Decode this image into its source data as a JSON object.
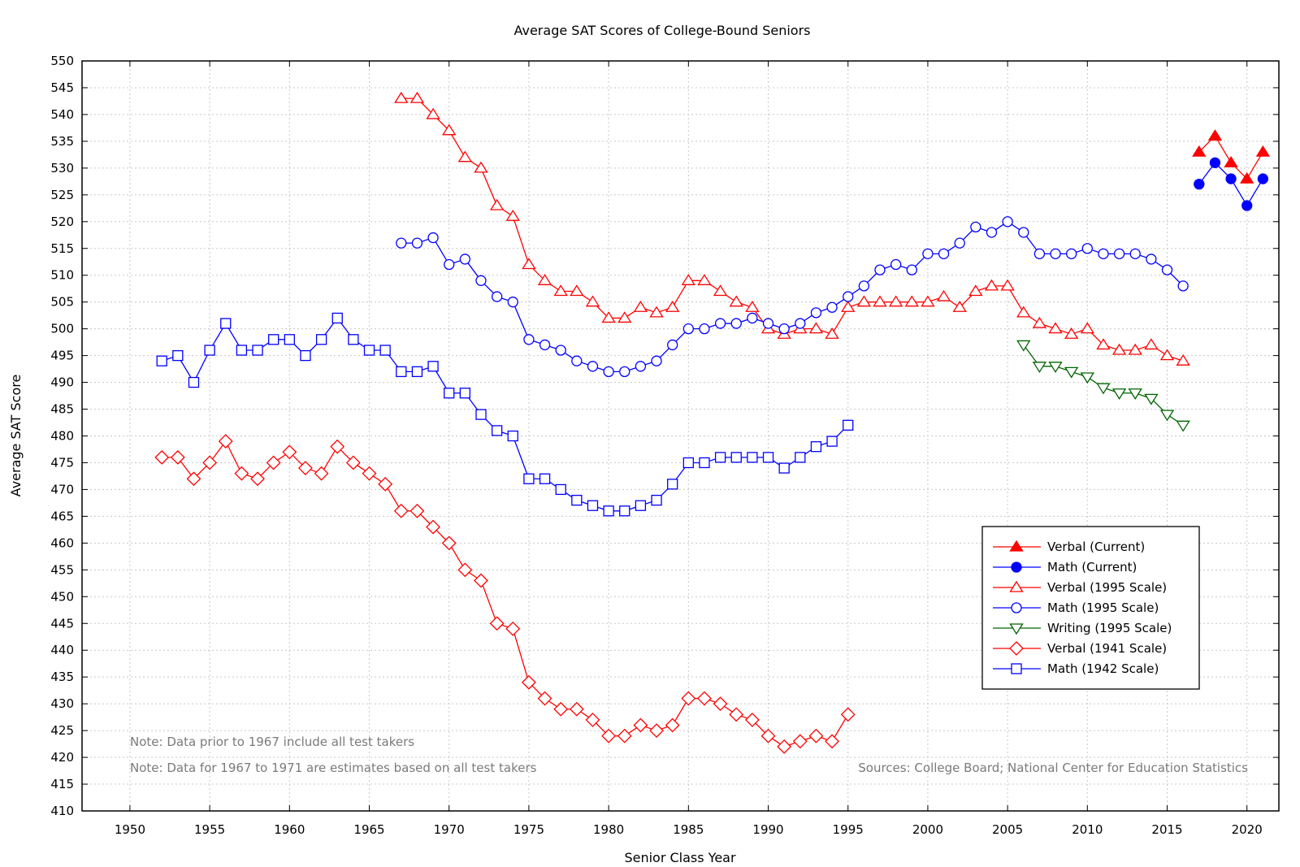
{
  "chart_data": {
    "type": "line",
    "title": "Average SAT Scores of College-Bound Seniors",
    "xlabel": "Senior Class Year",
    "ylabel": "Average SAT Score",
    "xlim": [
      1947,
      2022
    ],
    "ylim": [
      410,
      550
    ],
    "xticks": [
      1950,
      1955,
      1960,
      1965,
      1970,
      1975,
      1980,
      1985,
      1990,
      1995,
      2000,
      2005,
      2010,
      2015,
      2020
    ],
    "yticks": [
      410,
      415,
      420,
      425,
      430,
      435,
      440,
      445,
      450,
      455,
      460,
      465,
      470,
      475,
      480,
      485,
      490,
      495,
      500,
      505,
      510,
      515,
      520,
      525,
      530,
      535,
      540,
      545,
      550
    ],
    "grid": true,
    "legend_position": "lower-right",
    "notes": [
      "Note: Data prior to 1967 include all test takers",
      "Note: Data for 1967 to 1971 are estimates based on all test takers"
    ],
    "sources": "Sources: College Board; National Center for Education Statistics",
    "series": [
      {
        "name": "Verbal (Current)",
        "color": "#ff0000",
        "marker": "triangle-up-filled",
        "x": [
          2017,
          2018,
          2019,
          2020,
          2021
        ],
        "y": [
          533,
          536,
          531,
          528,
          533
        ]
      },
      {
        "name": "Math (Current)",
        "color": "#0000ff",
        "marker": "circle-filled",
        "x": [
          2017,
          2018,
          2019,
          2020,
          2021
        ],
        "y": [
          527,
          531,
          528,
          523,
          528
        ]
      },
      {
        "name": "Verbal (1995 Scale)",
        "color": "#ff0000",
        "marker": "triangle-up-open",
        "x": [
          1967,
          1968,
          1969,
          1970,
          1971,
          1972,
          1973,
          1974,
          1975,
          1976,
          1977,
          1978,
          1979,
          1980,
          1981,
          1982,
          1983,
          1984,
          1985,
          1986,
          1987,
          1988,
          1989,
          1990,
          1991,
          1992,
          1993,
          1994,
          1995,
          1996,
          1997,
          1998,
          1999,
          2000,
          2001,
          2002,
          2003,
          2004,
          2005,
          2006,
          2007,
          2008,
          2009,
          2010,
          2011,
          2012,
          2013,
          2014,
          2015,
          2016
        ],
        "y": [
          543,
          543,
          540,
          537,
          532,
          530,
          523,
          521,
          512,
          509,
          507,
          507,
          505,
          502,
          502,
          504,
          503,
          504,
          509,
          509,
          507,
          505,
          504,
          500,
          499,
          500,
          500,
          499,
          504,
          505,
          505,
          505,
          505,
          505,
          506,
          504,
          507,
          508,
          508,
          503,
          501,
          500,
          499,
          500,
          497,
          496,
          496,
          497,
          495,
          494
        ]
      },
      {
        "name": "Math (1995 Scale)",
        "color": "#0000ff",
        "marker": "circle-open",
        "x": [
          1967,
          1968,
          1969,
          1970,
          1971,
          1972,
          1973,
          1974,
          1975,
          1976,
          1977,
          1978,
          1979,
          1980,
          1981,
          1982,
          1983,
          1984,
          1985,
          1986,
          1987,
          1988,
          1989,
          1990,
          1991,
          1992,
          1993,
          1994,
          1995,
          1996,
          1997,
          1998,
          1999,
          2000,
          2001,
          2002,
          2003,
          2004,
          2005,
          2006,
          2007,
          2008,
          2009,
          2010,
          2011,
          2012,
          2013,
          2014,
          2015,
          2016
        ],
        "y": [
          516,
          516,
          517,
          512,
          513,
          509,
          506,
          505,
          498,
          497,
          496,
          494,
          493,
          492,
          492,
          493,
          494,
          497,
          500,
          500,
          501,
          501,
          502,
          501,
          500,
          501,
          503,
          504,
          506,
          508,
          511,
          512,
          511,
          514,
          514,
          516,
          519,
          518,
          520,
          518,
          514,
          514,
          514,
          515,
          514,
          514,
          514,
          513,
          511,
          508
        ]
      },
      {
        "name": "Writing (1995 Scale)",
        "color": "#006400",
        "marker": "triangle-down-open",
        "x": [
          2006,
          2007,
          2008,
          2009,
          2010,
          2011,
          2012,
          2013,
          2014,
          2015,
          2016
        ],
        "y": [
          497,
          493,
          493,
          492,
          491,
          489,
          488,
          488,
          487,
          484,
          482
        ]
      },
      {
        "name": "Verbal (1941 Scale)",
        "color": "#ff0000",
        "marker": "diamond-open",
        "x": [
          1952,
          1953,
          1954,
          1955,
          1956,
          1957,
          1958,
          1959,
          1960,
          1961,
          1962,
          1963,
          1964,
          1965,
          1966,
          1967,
          1968,
          1969,
          1970,
          1971,
          1972,
          1973,
          1974,
          1975,
          1976,
          1977,
          1978,
          1979,
          1980,
          1981,
          1982,
          1983,
          1984,
          1985,
          1986,
          1987,
          1988,
          1989,
          1990,
          1991,
          1992,
          1993,
          1994,
          1995
        ],
        "y": [
          476,
          476,
          472,
          475,
          479,
          473,
          472,
          475,
          477,
          474,
          473,
          478,
          475,
          473,
          471,
          466,
          466,
          463,
          460,
          455,
          453,
          445,
          444,
          434,
          431,
          429,
          429,
          427,
          424,
          424,
          426,
          425,
          426,
          431,
          431,
          430,
          428,
          427,
          424,
          422,
          423,
          424,
          423,
          428
        ]
      },
      {
        "name": "Math (1942 Scale)",
        "color": "#0000ff",
        "marker": "square-open",
        "x": [
          1952,
          1953,
          1954,
          1955,
          1956,
          1957,
          1958,
          1959,
          1960,
          1961,
          1962,
          1963,
          1964,
          1965,
          1966,
          1967,
          1968,
          1969,
          1970,
          1971,
          1972,
          1973,
          1974,
          1975,
          1976,
          1977,
          1978,
          1979,
          1980,
          1981,
          1982,
          1983,
          1984,
          1985,
          1986,
          1987,
          1988,
          1989,
          1990,
          1991,
          1992,
          1993,
          1994,
          1995
        ],
        "y": [
          494,
          495,
          490,
          496,
          501,
          496,
          496,
          498,
          498,
          495,
          498,
          502,
          498,
          496,
          496,
          492,
          492,
          493,
          488,
          488,
          484,
          481,
          480,
          472,
          472,
          470,
          468,
          467,
          466,
          466,
          467,
          468,
          471,
          475,
          475,
          476,
          476,
          476,
          476,
          474,
          476,
          478,
          479,
          482
        ]
      }
    ]
  }
}
